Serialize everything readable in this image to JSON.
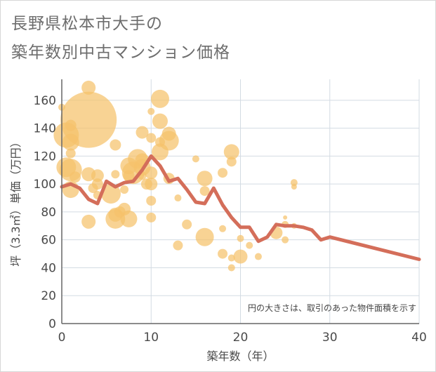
{
  "title_line1": "長野県松本市大手の",
  "title_line2": "築年数別中古マンション価格",
  "chart_data": {
    "type": "scatter",
    "xlabel": "築年数（年）",
    "ylabel": "坪（3.3㎡）単価（万円）",
    "xlim": [
      0,
      40
    ],
    "ylim": [
      0,
      175
    ],
    "xticks": [
      0,
      10,
      20,
      30,
      40
    ],
    "yticks": [
      0,
      20,
      40,
      60,
      80,
      100,
      120,
      140,
      160
    ],
    "grid": true,
    "note": "円の大きさは、取引のあった物件面積を示す",
    "colors": {
      "bubble": "#f5c26b",
      "line": "#d46e5a",
      "grid": "#d3dbe3",
      "axis": "#666666"
    },
    "bubbles": [
      {
        "x": 0,
        "y": 155,
        "r": 5
      },
      {
        "x": 3,
        "y": 146,
        "r": 40
      },
      {
        "x": 3,
        "y": 169,
        "r": 10
      },
      {
        "x": 0.5,
        "y": 135,
        "r": 18
      },
      {
        "x": 1,
        "y": 130,
        "r": 12
      },
      {
        "x": 1,
        "y": 142,
        "r": 8
      },
      {
        "x": 1,
        "y": 122,
        "r": 7
      },
      {
        "x": 0.5,
        "y": 112,
        "r": 14
      },
      {
        "x": 1,
        "y": 110,
        "r": 16
      },
      {
        "x": 1,
        "y": 96,
        "r": 12
      },
      {
        "x": 1.5,
        "y": 105,
        "r": 8
      },
      {
        "x": 3,
        "y": 107,
        "r": 10
      },
      {
        "x": 4,
        "y": 106,
        "r": 9
      },
      {
        "x": 3.5,
        "y": 97,
        "r": 7
      },
      {
        "x": 4,
        "y": 92,
        "r": 6
      },
      {
        "x": 4,
        "y": 100,
        "r": 8
      },
      {
        "x": 3,
        "y": 73,
        "r": 10
      },
      {
        "x": 6,
        "y": 128,
        "r": 8
      },
      {
        "x": 6,
        "y": 107,
        "r": 6
      },
      {
        "x": 5.5,
        "y": 93,
        "r": 14
      },
      {
        "x": 6,
        "y": 78,
        "r": 10
      },
      {
        "x": 6,
        "y": 75,
        "r": 14
      },
      {
        "x": 6.5,
        "y": 80,
        "r": 8
      },
      {
        "x": 7,
        "y": 82,
        "r": 9
      },
      {
        "x": 7,
        "y": 96,
        "r": 6
      },
      {
        "x": 7.5,
        "y": 113,
        "r": 12
      },
      {
        "x": 7.5,
        "y": 106,
        "r": 8
      },
      {
        "x": 7.5,
        "y": 75,
        "r": 12
      },
      {
        "x": 8,
        "y": 108,
        "r": 16
      },
      {
        "x": 8.5,
        "y": 118,
        "r": 14
      },
      {
        "x": 9,
        "y": 137,
        "r": 9
      },
      {
        "x": 9,
        "y": 117,
        "r": 10
      },
      {
        "x": 9,
        "y": 112,
        "r": 12
      },
      {
        "x": 9,
        "y": 106,
        "r": 6
      },
      {
        "x": 9.5,
        "y": 100,
        "r": 8
      },
      {
        "x": 10,
        "y": 152,
        "r": 5
      },
      {
        "x": 10,
        "y": 133,
        "r": 7
      },
      {
        "x": 10,
        "y": 108,
        "r": 9
      },
      {
        "x": 10,
        "y": 100,
        "r": 9
      },
      {
        "x": 10,
        "y": 88,
        "r": 7
      },
      {
        "x": 10,
        "y": 76,
        "r": 7
      },
      {
        "x": 11,
        "y": 161,
        "r": 13
      },
      {
        "x": 11,
        "y": 145,
        "r": 11
      },
      {
        "x": 11,
        "y": 130,
        "r": 7
      },
      {
        "x": 11,
        "y": 123,
        "r": 12
      },
      {
        "x": 12,
        "y": 136,
        "r": 10
      },
      {
        "x": 12,
        "y": 131,
        "r": 14
      },
      {
        "x": 12,
        "y": 104,
        "r": 8
      },
      {
        "x": 13,
        "y": 90,
        "r": 5
      },
      {
        "x": 13,
        "y": 56,
        "r": 7
      },
      {
        "x": 14,
        "y": 71,
        "r": 7
      },
      {
        "x": 15,
        "y": 118,
        "r": 5
      },
      {
        "x": 16,
        "y": 104,
        "r": 11
      },
      {
        "x": 16,
        "y": 95,
        "r": 7
      },
      {
        "x": 16,
        "y": 62,
        "r": 13
      },
      {
        "x": 18,
        "y": 108,
        "r": 7
      },
      {
        "x": 18,
        "y": 68,
        "r": 5
      },
      {
        "x": 18,
        "y": 50,
        "r": 7
      },
      {
        "x": 19,
        "y": 123,
        "r": 11
      },
      {
        "x": 19,
        "y": 116,
        "r": 7
      },
      {
        "x": 19,
        "y": 47,
        "r": 5
      },
      {
        "x": 19,
        "y": 40,
        "r": 5
      },
      {
        "x": 20,
        "y": 61,
        "r": 5
      },
      {
        "x": 20,
        "y": 48,
        "r": 10
      },
      {
        "x": 21,
        "y": 56,
        "r": 5
      },
      {
        "x": 22,
        "y": 48,
        "r": 5
      },
      {
        "x": 24,
        "y": 65,
        "r": 9
      },
      {
        "x": 25,
        "y": 76,
        "r": 3
      },
      {
        "x": 25,
        "y": 71,
        "r": 5
      },
      {
        "x": 25,
        "y": 60,
        "r": 5
      },
      {
        "x": 26,
        "y": 101,
        "r": 5
      },
      {
        "x": 26,
        "y": 98,
        "r": 4
      },
      {
        "x": 26,
        "y": 70,
        "r": 4
      }
    ],
    "trend": {
      "x": [
        0,
        1,
        2,
        3,
        4,
        5,
        6,
        7,
        8,
        9,
        10,
        11,
        12,
        13,
        14,
        15,
        16,
        17,
        18,
        19,
        20,
        21,
        22,
        23,
        24,
        25,
        26,
        27,
        28,
        29,
        30,
        40
      ],
      "y": [
        98,
        100,
        97,
        89,
        86,
        102,
        98,
        101,
        102,
        110,
        120,
        113,
        102,
        104,
        96,
        87,
        86,
        97,
        85,
        76,
        69,
        69,
        59,
        62,
        71,
        70,
        70,
        69,
        67,
        60,
        62,
        46
      ]
    }
  }
}
